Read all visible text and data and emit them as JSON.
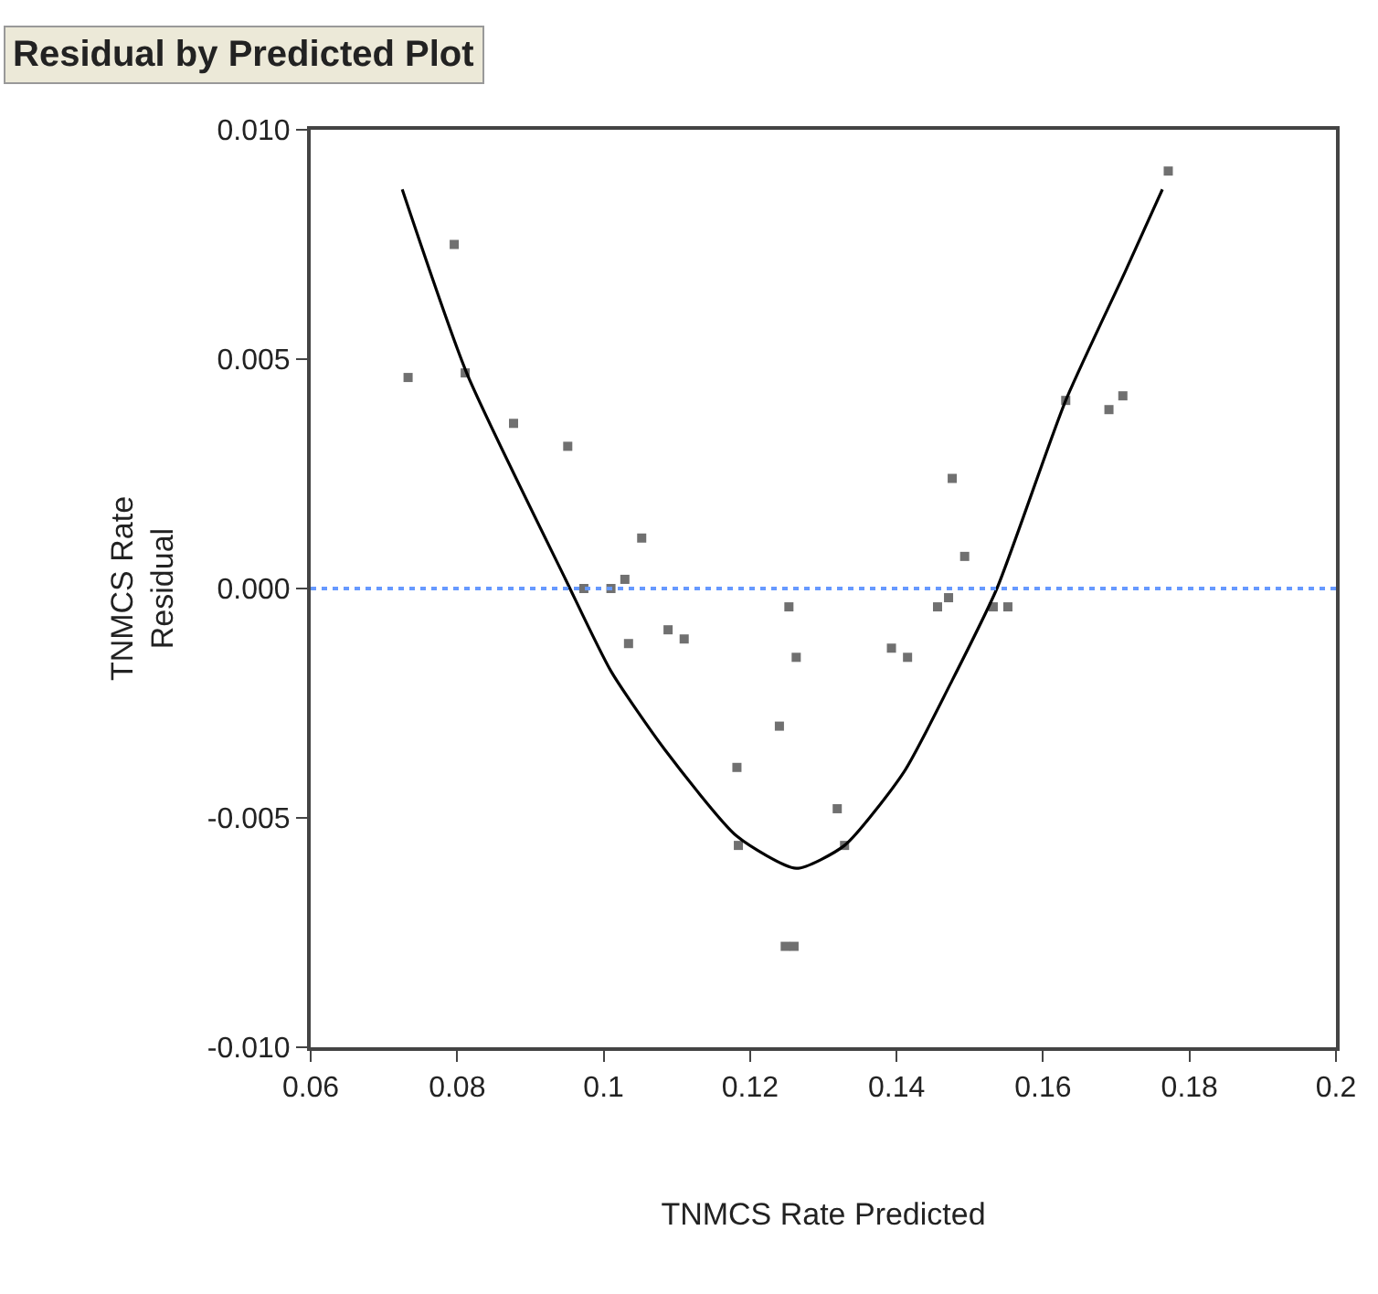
{
  "chart_data": {
    "type": "scatter",
    "title": "Residual by Predicted Plot",
    "xlabel": "TNMCS Rate Predicted",
    "ylabel": "TNMCS Rate\nResidual",
    "xlim": [
      0.06,
      0.2
    ],
    "xticks": [
      0.06,
      0.08,
      0.1,
      0.12,
      0.14,
      0.16,
      0.18,
      0.2
    ],
    "ylim": [
      -0.01,
      0.01
    ],
    "yticks": [
      {
        "value": -0.01,
        "label": "-0.010"
      },
      {
        "value": -0.005,
        "label": "-0.005"
      },
      {
        "value": 0,
        "label": "0.000"
      },
      {
        "value": 0.005,
        "label": "0.005"
      },
      {
        "value": 0.01,
        "label": "0.010"
      }
    ],
    "marker": "square",
    "series": [
      {
        "color": "#707070",
        "x": [
          0.0733,
          0.0796,
          0.0811,
          0.0877,
          0.0951,
          0.1052,
          0.1029,
          0.0973,
          0.101,
          0.1034,
          0.1088,
          0.111,
          0.1182,
          0.1184,
          0.124,
          0.1253,
          0.1263,
          0.1248,
          0.126,
          0.1319,
          0.1329,
          0.1393,
          0.1415,
          0.1456,
          0.1471,
          0.1493,
          0.1532,
          0.1552,
          0.1476,
          0.1631,
          0.169,
          0.1709,
          0.1771
        ],
        "values": [
          0.0046,
          0.0075,
          0.0047,
          0.0036,
          0.0031,
          0.0011,
          0.0002,
          -0.0,
          -0.0,
          -0.0012,
          -0.0009,
          -0.0011,
          -0.0039,
          -0.0056,
          -0.003,
          -0.0004,
          -0.0015,
          -0.0078,
          -0.0078,
          -0.0048,
          -0.0056,
          -0.0013,
          -0.0015,
          -0.0004,
          -0.0002,
          0.0007,
          -0.0004,
          -0.0004,
          0.0024,
          0.0041,
          0.0039,
          0.0042,
          0.0091
        ]
      },
      {
        "type": "line",
        "color": "#000000",
        "line_style": "solid",
        "marker": "none",
        "x": [
          0.0725,
          0.0813,
          0.0948,
          0.101,
          0.1083,
          0.1182,
          0.1263,
          0.1329,
          0.141,
          0.1476,
          0.1537,
          0.1631,
          0.1712,
          0.1763
        ],
        "values": [
          0.0087,
          0.0047,
          0.0002,
          -0.0018,
          -0.0035,
          -0.0054,
          -0.0061,
          -0.0056,
          -0.004,
          -0.002,
          0.0,
          0.0041,
          0.0069,
          0.0087
        ]
      }
    ],
    "ref_lines": [
      {
        "axis": "y",
        "value": 0,
        "color": "#6699ff",
        "line_style": "dotted"
      }
    ]
  }
}
